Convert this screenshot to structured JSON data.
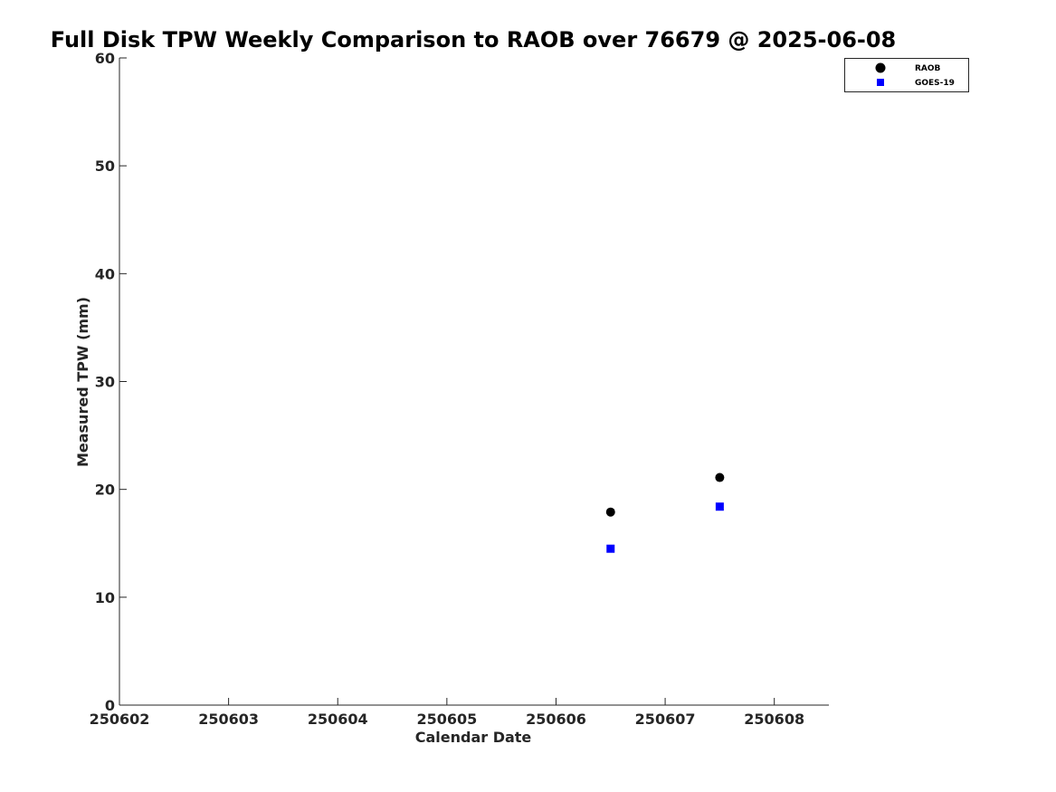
{
  "chart_data": {
    "type": "scatter",
    "title": "Full Disk TPW Weekly Comparison to RAOB over 76679 @ 2025-06-08",
    "xlabel": "Calendar Date",
    "ylabel": "Measured TPW (mm)",
    "xlim": [
      250602,
      250608.5
    ],
    "ylim": [
      0,
      60
    ],
    "xticks": [
      250602,
      250603,
      250604,
      250605,
      250606,
      250607,
      250608
    ],
    "xtick_labels": [
      "250602",
      "250603",
      "250604",
      "250605",
      "250606",
      "250607",
      "250608"
    ],
    "yticks": [
      0,
      10,
      20,
      30,
      40,
      50,
      60
    ],
    "ytick_labels": [
      "0",
      "10",
      "20",
      "30",
      "40",
      "50",
      "60"
    ],
    "grid": false,
    "legend_position": "top-right (outside)",
    "series": [
      {
        "name": "RAOB",
        "marker": "circle",
        "color": "#000000",
        "x": [
          250606.5,
          250607.5
        ],
        "y": [
          17.9,
          21.1
        ]
      },
      {
        "name": "GOES-19",
        "marker": "square",
        "color": "#0000ff",
        "x": [
          250606.5,
          250607.5
        ],
        "y": [
          14.5,
          18.4
        ]
      }
    ]
  }
}
